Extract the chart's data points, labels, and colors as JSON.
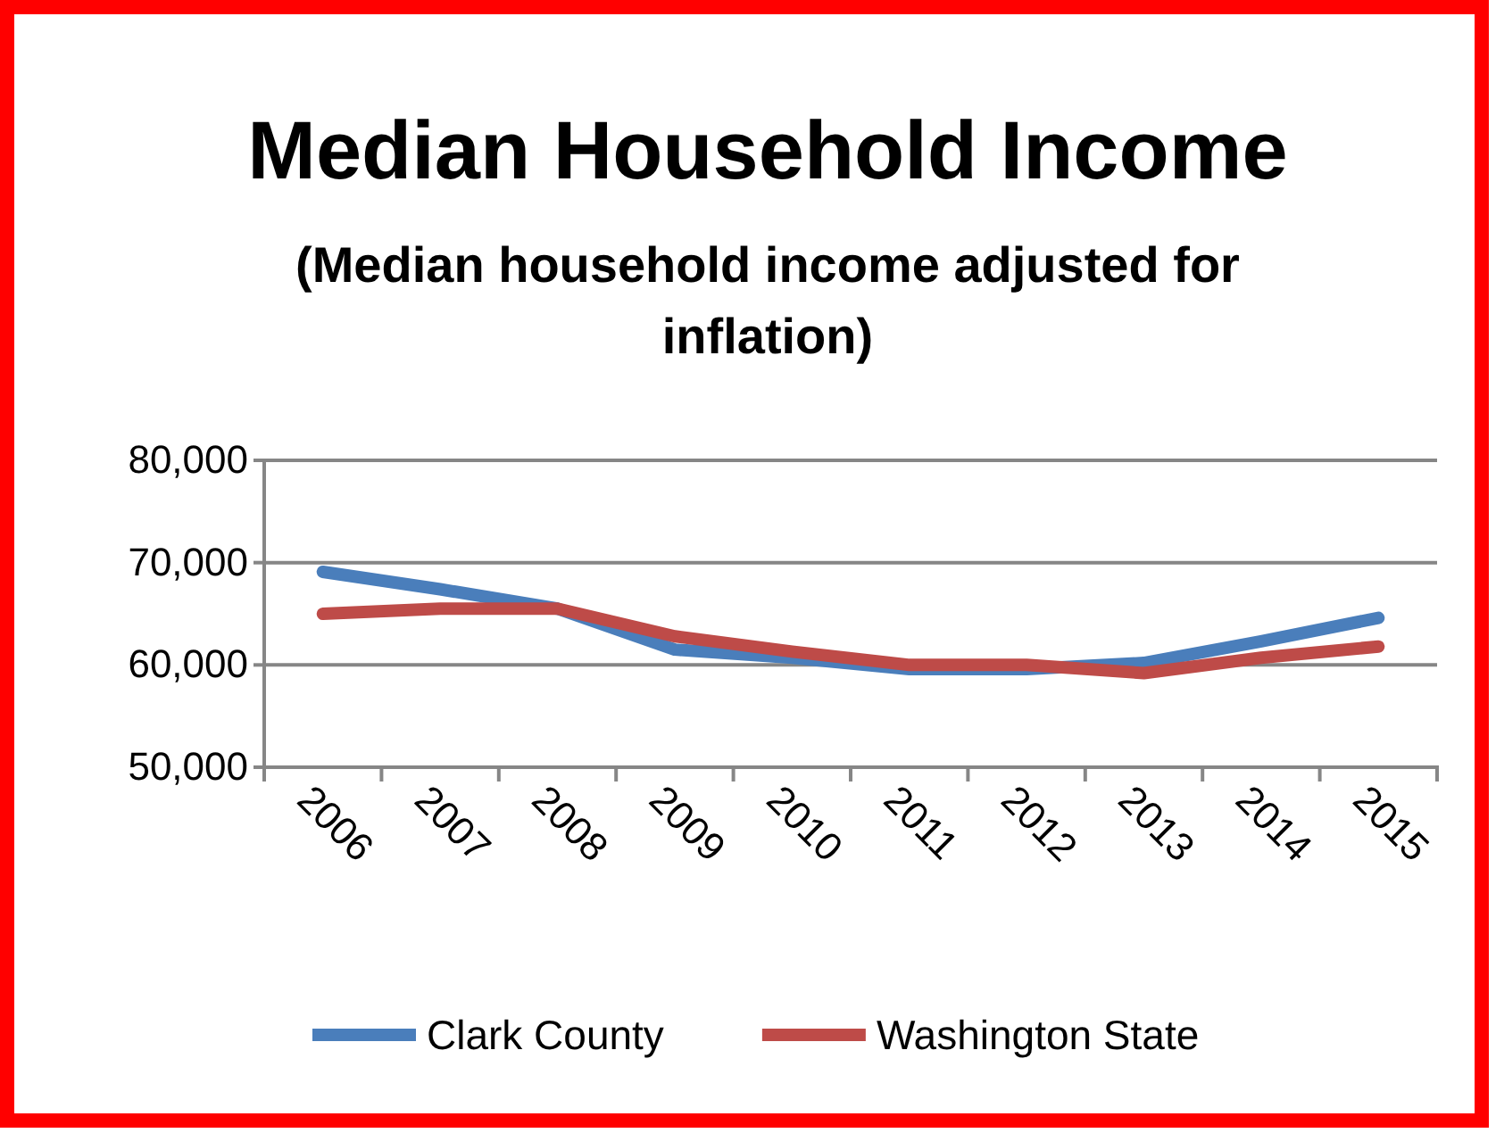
{
  "chart_data": {
    "type": "line",
    "title": "Median Household Income",
    "subtitle": "(Median household income adjusted for inflation)",
    "categories": [
      "2006",
      "2007",
      "2008",
      "2009",
      "2010",
      "2011",
      "2012",
      "2013",
      "2014",
      "2015"
    ],
    "series": [
      {
        "name": "Clark County",
        "color": "#4a7ebb",
        "values": [
          69100,
          67400,
          65500,
          61500,
          60700,
          59600,
          59600,
          60200,
          62300,
          64600
        ]
      },
      {
        "name": "Washington State",
        "color": "#be4b48",
        "values": [
          65000,
          65500,
          65500,
          62800,
          61300,
          60000,
          60000,
          59200,
          60700,
          61800
        ]
      }
    ],
    "ylim": [
      50000,
      80000
    ],
    "yticks": [
      {
        "value": 50000,
        "label": "50,000"
      },
      {
        "value": 60000,
        "label": "60,000"
      },
      {
        "value": 70000,
        "label": "70,000"
      },
      {
        "value": 80000,
        "label": "80,000"
      }
    ],
    "grid": "y",
    "legend": "bottom",
    "marker": "none",
    "line_style": "solid"
  }
}
